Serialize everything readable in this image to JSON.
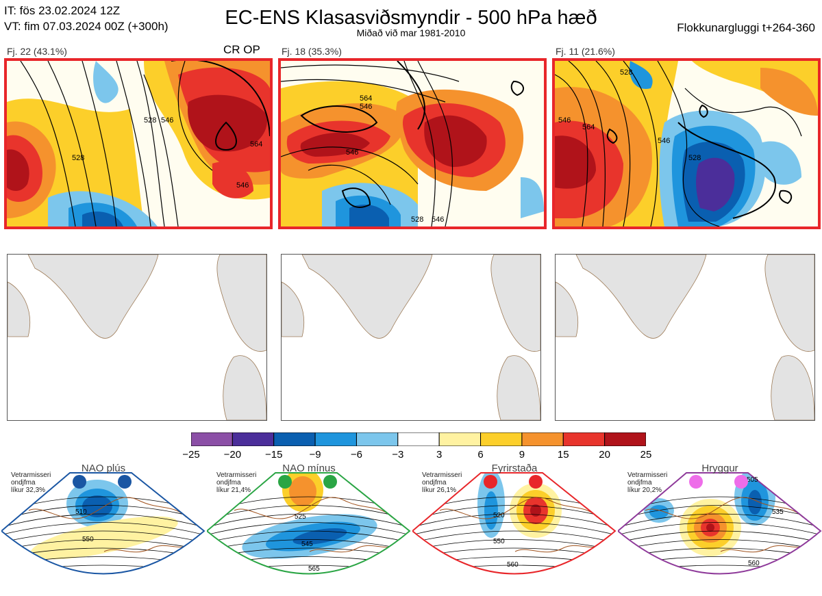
{
  "header": {
    "it_line": "IT: fös 23.02.2024 12Z",
    "vt_line": "VT: fim 07.03.2024 00Z  (+300h)",
    "title": "EC-ENS Klasasviðsmyndir - 500 hPa hæð",
    "subtitle": "Miðað við mar 1981-2010",
    "window": "Flokkunargluggi t+264-360"
  },
  "clusters": [
    {
      "label": "Fj. 22 (43.1%)",
      "tag": "CR OP",
      "contours": [
        "528",
        "546",
        "564",
        "528",
        "546"
      ]
    },
    {
      "label": "Fj. 18 (35.3%)",
      "tag": "",
      "contours": [
        "546",
        "564",
        "546",
        "528",
        "546"
      ]
    },
    {
      "label": "Fj. 11 (21.6%)",
      "tag": "",
      "contours": [
        "546",
        "564",
        "546",
        "528",
        "528"
      ]
    }
  ],
  "colorbar": {
    "ticks": [
      "−25",
      "−20",
      "−15",
      "−9",
      "−6",
      "−3",
      "3",
      "6",
      "9",
      "15",
      "20",
      "25"
    ],
    "colors": [
      "#8b4fa6",
      "#4b2e9a",
      "#0a5fb0",
      "#1f95dd",
      "#7cc6ec",
      "#ffffff",
      "#fff2a1",
      "#fccf2a",
      "#f5922d",
      "#e8342c",
      "#b0131a"
    ]
  },
  "regimes": [
    {
      "title": "NAO plús",
      "note": [
        "Vetrarmisseri",
        "ondjfma",
        "líkur 32,3%"
      ],
      "color": "#1a56a3",
      "dot": "#1a56a3",
      "levels": [
        "510",
        "550"
      ]
    },
    {
      "title": "NAO mínus",
      "note": [
        "Vetrarmisseri",
        "ondjfma",
        "líkur 21,4%"
      ],
      "color": "#2aa544",
      "dot": "#2aa544",
      "levels": [
        "525",
        "545",
        "565"
      ]
    },
    {
      "title": "Fyrirstaða",
      "note": [
        "Vetrarmisseri",
        "ondjfma",
        "líkur 26,1%"
      ],
      "color": "#e8262a",
      "dot": "#e8262a",
      "levels": [
        "520",
        "550",
        "560"
      ]
    },
    {
      "title": "Hryggur",
      "note": [
        "Vetrarmisseri",
        "ondjfma",
        "líkur 20,2%"
      ],
      "color": "#8e3a9a",
      "dot": "#ee6de9",
      "levels": [
        "505",
        "535",
        "560"
      ]
    }
  ]
}
